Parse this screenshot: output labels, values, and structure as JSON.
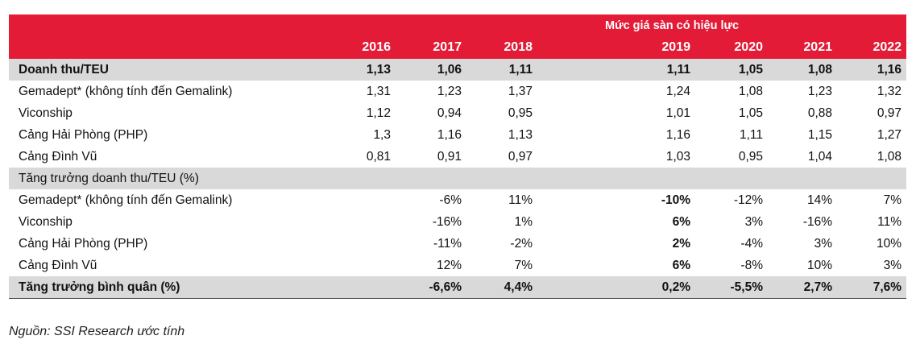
{
  "header": {
    "super_label": "Mức giá sàn có hiệu lực",
    "years": [
      "2016",
      "2017",
      "2018",
      "2019",
      "2020",
      "2021",
      "2022"
    ]
  },
  "section1": {
    "label": "Doanh thu/TEU",
    "values": [
      "1,13",
      "1,06",
      "1,11",
      "1,11",
      "1,05",
      "1,08",
      "1,16"
    ],
    "rows": [
      {
        "label": "Gemadept* (không tính đến Gemalink)",
        "values": [
          "1,31",
          "1,23",
          "1,37",
          "1,24",
          "1,08",
          "1,23",
          "1,32"
        ]
      },
      {
        "label": "Viconship",
        "values": [
          "1,12",
          "0,94",
          "0,95",
          "1,01",
          "1,05",
          "0,88",
          "0,97"
        ]
      },
      {
        "label": "Cảng Hải Phòng (PHP)",
        "values": [
          "1,3",
          "1,16",
          "1,13",
          "1,16",
          "1,11",
          "1,15",
          "1,27"
        ]
      },
      {
        "label": "Cảng Đình Vũ",
        "values": [
          "0,81",
          "0,91",
          "0,97",
          "1,03",
          "0,95",
          "1,04",
          "1,08"
        ]
      }
    ]
  },
  "section2": {
    "label": "Tăng trưởng doanh thu/TEU (%)",
    "rows": [
      {
        "label": "Gemadept* (không tính đến Gemalink)",
        "values": [
          "",
          "-6%",
          "11%",
          "-10%",
          "-12%",
          "14%",
          "7%"
        ]
      },
      {
        "label": "Viconship",
        "values": [
          "",
          "-16%",
          "1%",
          "6%",
          "3%",
          "-16%",
          "11%"
        ]
      },
      {
        "label": "Cảng Hải Phòng (PHP)",
        "values": [
          "",
          "-11%",
          "-2%",
          "2%",
          "-4%",
          "3%",
          "10%"
        ]
      },
      {
        "label": "Cảng Đình Vũ",
        "values": [
          "",
          "12%",
          "7%",
          "6%",
          "-8%",
          "10%",
          "3%"
        ]
      }
    ]
  },
  "summary": {
    "label": "Tăng trưởng bình quân (%)",
    "values": [
      "",
      "-6,6%",
      "4,4%",
      "0,2%",
      "-5,5%",
      "2,7%",
      "7,6%"
    ]
  },
  "source": "Nguồn: SSI Research ước tính"
}
